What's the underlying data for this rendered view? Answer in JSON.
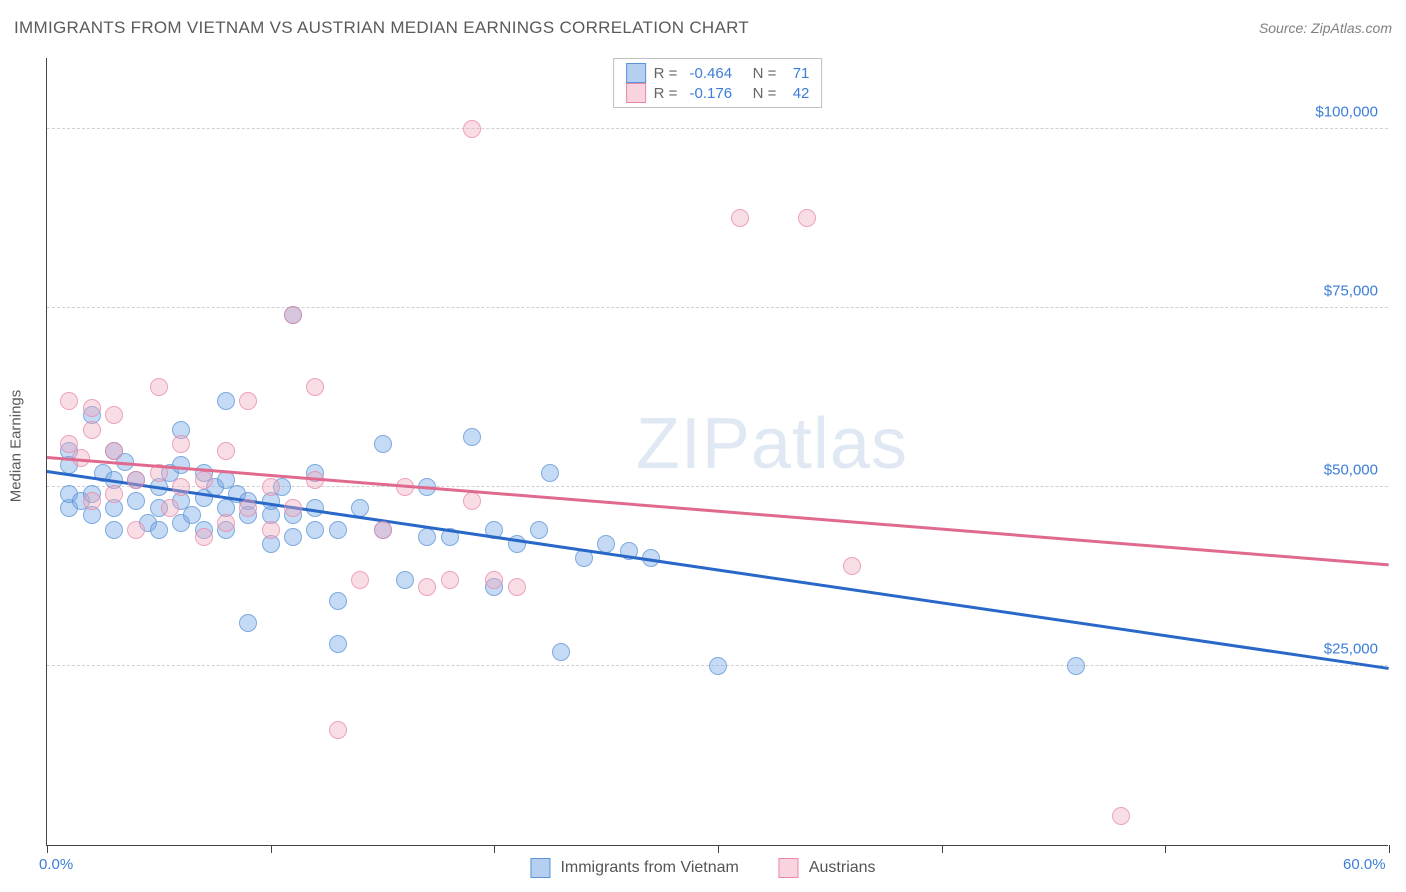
{
  "title": "IMMIGRANTS FROM VIETNAM VS AUSTRIAN MEDIAN EARNINGS CORRELATION CHART",
  "source": "Source: ZipAtlas.com",
  "ylabel": "Median Earnings",
  "watermark": "ZIPatlas",
  "chart": {
    "type": "scatter",
    "xlim": [
      0,
      60
    ],
    "ylim": [
      0,
      110000
    ],
    "xticks": [
      0,
      10,
      20,
      30,
      40,
      50,
      60
    ],
    "xtick_labels": {
      "0": "0.0%",
      "60": "60.0%"
    },
    "yticks": [
      25000,
      50000,
      75000,
      100000
    ],
    "ytick_labels": [
      "$25,000",
      "$50,000",
      "$75,000",
      "$100,000"
    ],
    "grid_color": "#d0d0d0",
    "background_color": "#ffffff",
    "marker_size": 18,
    "series": [
      {
        "name": "Immigrants from Vietnam",
        "color_fill": "rgba(120,168,230,0.55)",
        "color_stroke": "#5a93d6",
        "trend_color": "#2968c8",
        "R": "-0.464",
        "N": "71",
        "trend": {
          "x1": 0,
          "y1": 52000,
          "x2": 60,
          "y2": 24500
        },
        "points": [
          [
            1,
            47000
          ],
          [
            1,
            49000
          ],
          [
            1,
            53000
          ],
          [
            1,
            55000
          ],
          [
            1.5,
            48000
          ],
          [
            2,
            46000
          ],
          [
            2,
            49000
          ],
          [
            2,
            60000
          ],
          [
            2.5,
            52000
          ],
          [
            3,
            44000
          ],
          [
            3,
            47000
          ],
          [
            3,
            51000
          ],
          [
            3,
            55000
          ],
          [
            3.5,
            53500
          ],
          [
            4,
            48000
          ],
          [
            4,
            51000
          ],
          [
            4.5,
            45000
          ],
          [
            5,
            44000
          ],
          [
            5,
            47000
          ],
          [
            5,
            50000
          ],
          [
            5.5,
            52000
          ],
          [
            6,
            45000
          ],
          [
            6,
            48000
          ],
          [
            6,
            53000
          ],
          [
            6,
            58000
          ],
          [
            6.5,
            46000
          ],
          [
            7,
            44000
          ],
          [
            7,
            48500
          ],
          [
            7,
            52000
          ],
          [
            7.5,
            50000
          ],
          [
            8,
            44000
          ],
          [
            8,
            47000
          ],
          [
            8,
            51000
          ],
          [
            8,
            62000
          ],
          [
            8.5,
            49000
          ],
          [
            9,
            31000
          ],
          [
            9,
            46000
          ],
          [
            9,
            48000
          ],
          [
            10,
            42000
          ],
          [
            10,
            46000
          ],
          [
            10,
            48000
          ],
          [
            10.5,
            50000
          ],
          [
            11,
            43000
          ],
          [
            11,
            46000
          ],
          [
            11,
            74000
          ],
          [
            12,
            44000
          ],
          [
            12,
            47000
          ],
          [
            12,
            52000
          ],
          [
            13,
            28000
          ],
          [
            13,
            34000
          ],
          [
            13,
            44000
          ],
          [
            14,
            47000
          ],
          [
            15,
            44000
          ],
          [
            15,
            56000
          ],
          [
            16,
            37000
          ],
          [
            17,
            43000
          ],
          [
            17,
            50000
          ],
          [
            18,
            43000
          ],
          [
            19,
            57000
          ],
          [
            20,
            36000
          ],
          [
            20,
            44000
          ],
          [
            21,
            42000
          ],
          [
            22,
            44000
          ],
          [
            22.5,
            52000
          ],
          [
            23,
            27000
          ],
          [
            24,
            40000
          ],
          [
            25,
            42000
          ],
          [
            26,
            41000
          ],
          [
            27,
            40000
          ],
          [
            30,
            25000
          ],
          [
            46,
            25000
          ]
        ]
      },
      {
        "name": "Austrians",
        "color_fill": "rgba(242,169,190,0.5)",
        "color_stroke": "#e989a8",
        "trend_color": "#e06a8d",
        "R": "-0.176",
        "N": "42",
        "trend": {
          "x1": 0,
          "y1": 54000,
          "x2": 60,
          "y2": 39000
        },
        "points": [
          [
            1,
            56000
          ],
          [
            1,
            62000
          ],
          [
            1.5,
            54000
          ],
          [
            2,
            48000
          ],
          [
            2,
            58000
          ],
          [
            2,
            61000
          ],
          [
            3,
            49000
          ],
          [
            3,
            55000
          ],
          [
            3,
            60000
          ],
          [
            4,
            44000
          ],
          [
            4,
            51000
          ],
          [
            5,
            64000
          ],
          [
            5,
            52000
          ],
          [
            5.5,
            47000
          ],
          [
            6,
            50000
          ],
          [
            6,
            56000
          ],
          [
            7,
            43000
          ],
          [
            7,
            51000
          ],
          [
            8,
            45000
          ],
          [
            8,
            55000
          ],
          [
            9,
            47000
          ],
          [
            9,
            62000
          ],
          [
            10,
            44000
          ],
          [
            10,
            50000
          ],
          [
            11,
            47000
          ],
          [
            11,
            74000
          ],
          [
            12,
            51000
          ],
          [
            12,
            64000
          ],
          [
            13,
            16000
          ],
          [
            14,
            37000
          ],
          [
            15,
            44000
          ],
          [
            16,
            50000
          ],
          [
            17,
            36000
          ],
          [
            18,
            37000
          ],
          [
            19,
            48000
          ],
          [
            19,
            100000
          ],
          [
            20,
            37000
          ],
          [
            21,
            36000
          ],
          [
            31,
            87500
          ],
          [
            34,
            87500
          ],
          [
            36,
            39000
          ],
          [
            48,
            4000
          ]
        ]
      }
    ]
  },
  "legend": {
    "items": [
      {
        "label": "Immigrants from Vietnam",
        "swatch": "blue"
      },
      {
        "label": "Austrians",
        "swatch": "pink"
      }
    ]
  }
}
